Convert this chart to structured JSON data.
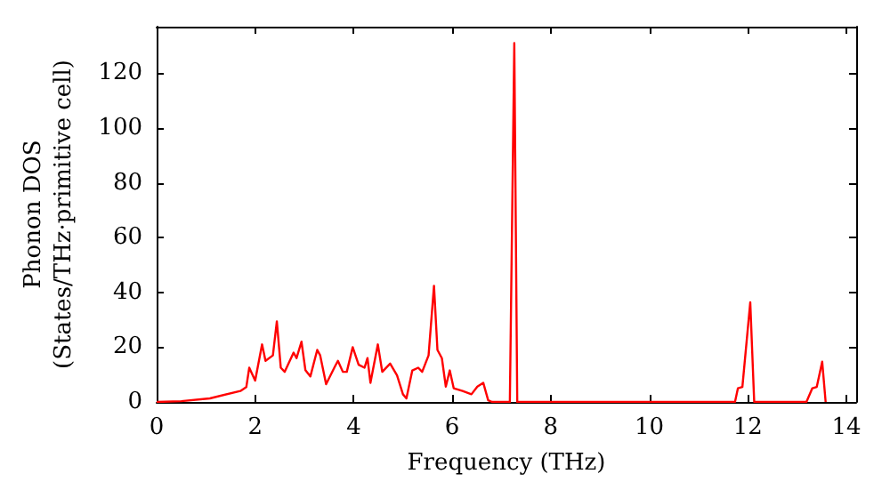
{
  "chart_data": {
    "type": "line",
    "xlabel": "Frequency (THz)",
    "ylabel": "Phonon DOS\n(States/THz·primitive cell)",
    "x": [
      0,
      0.5,
      1.08,
      1.7,
      1.82,
      1.88,
      2.0,
      2.14,
      2.21,
      2.36,
      2.44,
      2.52,
      2.6,
      2.78,
      2.84,
      2.94,
      3.02,
      3.12,
      3.26,
      3.32,
      3.44,
      3.62,
      3.68,
      3.78,
      3.86,
      3.98,
      4.1,
      4.22,
      4.28,
      4.34,
      4.49,
      4.58,
      4.74,
      4.88,
      5.0,
      5.07,
      5.19,
      5.31,
      5.39,
      5.52,
      5.63,
      5.7,
      5.79,
      5.87,
      5.95,
      6.03,
      6.21,
      6.39,
      6.51,
      6.63,
      6.73,
      6.81,
      7.17,
      7.26,
      7.32,
      11.74,
      11.8,
      11.89,
      12.05,
      12.13,
      13.19,
      13.31,
      13.4,
      13.51,
      13.58
    ],
    "series": [
      {
        "color": "#ff0000",
        "values": [
          0,
          0.3,
          1.3,
          4,
          5.4,
          12.5,
          7.8,
          21,
          15,
          17,
          29.4,
          12.5,
          11,
          18,
          16,
          22,
          11.6,
          9.3,
          19,
          17,
          6.5,
          13,
          15,
          11,
          11,
          20,
          13.6,
          12.5,
          16,
          7,
          21,
          11,
          14,
          9.7,
          2.8,
          1.3,
          11.5,
          12.5,
          11,
          17,
          42.4,
          19,
          16,
          5.6,
          11.5,
          5,
          4,
          2.8,
          5.6,
          7,
          0.6,
          0,
          0,
          131,
          0,
          0,
          5,
          5.5,
          36.4,
          0,
          0,
          5,
          5.5,
          14.7,
          0
        ]
      }
    ],
    "xlim": [
      0,
      14.2
    ],
    "ylim": [
      0,
      137
    ],
    "xticks": [
      0,
      2,
      4,
      6,
      8,
      10,
      12,
      14
    ],
    "yticks": [
      0,
      20,
      40,
      60,
      80,
      100,
      120
    ],
    "grid": false,
    "marker": "none",
    "line_style": "solid"
  }
}
